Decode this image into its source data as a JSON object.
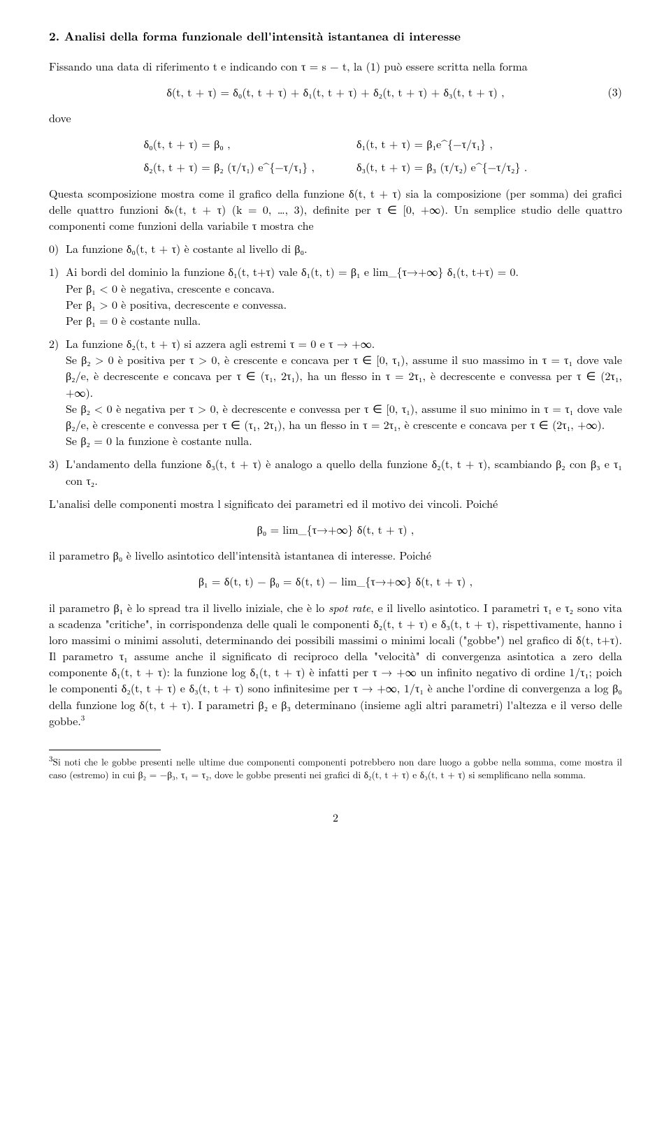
{
  "section": {
    "number": "2.",
    "title": "Analisi della forma funzionale dell'intensità istantanea di interesse"
  },
  "intro1": "Fissando una data di riferimento t e indicando con τ = s − t, la (1) può essere scritta nella forma",
  "eq3": {
    "expr": "δ(t, t + τ) = δ₀(t, t + τ) + δ₁(t, t + τ) + δ₂(t, t + τ) + δ₃(t, t + τ)  ,",
    "num": "(3)"
  },
  "dove": "dove",
  "defs": {
    "d0": "δ₀(t, t + τ) = β₀  ,",
    "d1": "δ₁(t, t + τ) = β₁e^{−τ/τ₁}  ,",
    "d2": "δ₂(t, t + τ) = β₂ (τ/τ₁) e^{−τ/τ₁}  ,",
    "d3": "δ₃(t, t + τ) = β₃ (τ/τ₂) e^{−τ/τ₂}  ."
  },
  "para2": "Questa scomposizione mostra come il grafico della funzione δ(t, t + τ) sia la composizione (per somma) dei grafici delle quattro funzioni δₖ(t, t + τ) (k = 0, …, 3), definite per τ ∈ [0, +∞). Un semplice studio delle quattro componenti come funzioni della variabile τ mostra che",
  "item0": "La funzione δ₀(t, t + τ) è costante al livello di β₀.",
  "item1": {
    "a": "Ai bordi del dominio la funzione δ₁(t, t+τ) vale δ₁(t, t) = β₁ e lim_{τ→+∞} δ₁(t, t+τ) = 0.",
    "b": "Per β₁ < 0 è negativa, crescente e concava.",
    "c": "Per β₁ > 0 è positiva, decrescente e convessa.",
    "d": "Per β₁ = 0 è costante nulla."
  },
  "item2": {
    "a": "La funzione δ₂(t, t + τ) si azzera agli estremi τ = 0 e τ → +∞.",
    "b": "Se β₂ > 0 è positiva per τ > 0, è crescente e concava per τ ∈ [0, τ₁), assume il suo massimo in τ = τ₁ dove vale β₂/e, è decrescente e concava per τ ∈ (τ₁, 2τ₁), ha un flesso in τ = 2τ₁, è decrescente e convessa per τ ∈ (2τ₁, +∞).",
    "c": "Se β₂ < 0 è negativa per τ > 0, è decrescente e convessa per τ ∈ [0, τ₁), assume il suo minimo in τ = τ₁ dove vale β₂/e, è crescente e convessa per τ ∈ (τ₁, 2τ₁), ha un flesso in τ = 2τ₁, è crescente e concava per τ ∈ (2τ₁, +∞).",
    "d": "Se β₂ = 0 la funzione è costante nulla."
  },
  "item3": "L'andamento della funzione δ₃(t, t + τ) è analogo a quello della funzione δ₂(t, t + τ), scambiando β₂ con β₃ e τ₁ con τ₂.",
  "para3": "L'analisi delle componenti mostra l significato dei parametri ed il motivo dei vincoli. Poiché",
  "eqBeta0": "β₀ = lim_{τ→+∞} δ(t, t + τ)  ,",
  "para4": "il parametro β₀ è livello asintotico dell'intensità istantanea di interesse. Poiché",
  "eqBeta1": "β₁ = δ(t, t) − β₀ = δ(t, t) − lim_{τ→+∞} δ(t, t + τ)  ,",
  "para5a": "il parametro β₁ è lo spread tra il livello iniziale, che è lo ",
  "spotrate": "spot rate",
  "para5b": ", e il livello asintotico. I parametri τ₁ e τ₂ sono vita a scadenza \"critiche\", in corrispondenza delle quali le componenti δ₂(t, t + τ) e δ₃(t, t + τ), rispettivamente, hanno i loro massimi o minimi assoluti, determinando dei possibili massimi o minimi locali (\"gobbe\") nel grafico di δ(t, t+τ). Il parametro τ₁ assume anche il significato di reciproco della \"velocità\" di convergenza asintotica a zero della componente δ₁(t, t + τ): la funzione log δ₁(t, t + τ) è infatti per τ → +∞ un infinito negativo di ordine 1/τ₁; poich le componenti δ₂(t, t + τ) e δ₃(t, t + τ) sono infinitesime per τ → +∞, 1/τ₁ è anche l'ordine di convergenza a log β₀ della funzione log δ(t, t + τ). I parametri β₂ e β₃ determinano (insieme agli altri parametri) l'altezza e il verso delle gobbe.",
  "fnref": "3",
  "footnote": {
    "num": "3",
    "text": "Si noti che le gobbe presenti nelle ultime due componenti componenti potrebbero non dare luogo a gobbe nella somma, come mostra il caso (estremo) in cui β₂ = −β₃, τ₁ = τ₂, dove le gobbe presenti nei grafici di δ₂(t, t + τ) e δ₃(t, t + τ) si semplificano nella somma."
  },
  "pageNumber": "2",
  "labels": {
    "n0": "0)",
    "n1": "1)",
    "n2": "2)",
    "n3": "3)"
  }
}
